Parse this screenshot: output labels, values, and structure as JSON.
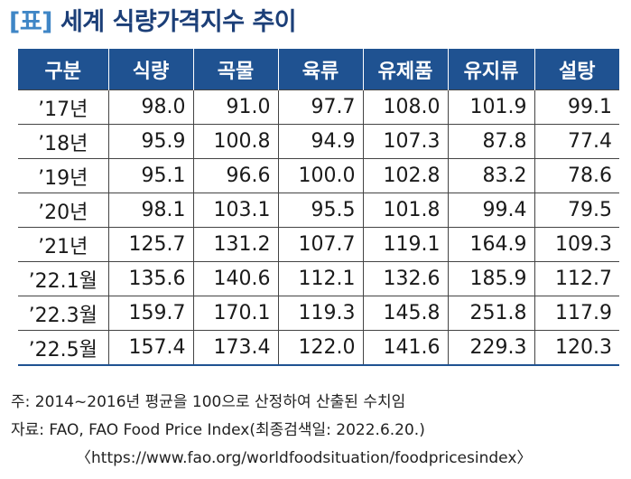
{
  "title": {
    "bracket": "[표]",
    "text": "세계 식량가격지수 추이"
  },
  "table": {
    "headers": [
      "구분",
      "식량",
      "곡물",
      "육류",
      "유제품",
      "유지류",
      "설탕"
    ],
    "rows": [
      [
        "’17년",
        "98.0",
        "91.0",
        "97.7",
        "108.0",
        "101.9",
        "99.1"
      ],
      [
        "’18년",
        "95.9",
        "100.8",
        "94.9",
        "107.3",
        "87.8",
        "77.4"
      ],
      [
        "’19년",
        "95.1",
        "96.6",
        "100.0",
        "102.8",
        "83.2",
        "78.6"
      ],
      [
        "’20년",
        "98.1",
        "103.1",
        "95.5",
        "101.8",
        "99.4",
        "79.5"
      ],
      [
        "’21년",
        "125.7",
        "131.2",
        "107.7",
        "119.1",
        "164.9",
        "109.3"
      ],
      [
        "’22.1월",
        "135.6",
        "140.6",
        "112.1",
        "132.6",
        "185.9",
        "112.7"
      ],
      [
        "’22.3월",
        "159.7",
        "170.1",
        "119.3",
        "145.8",
        "251.8",
        "117.9"
      ],
      [
        "’22.5월",
        "157.4",
        "173.4",
        "122.0",
        "141.6",
        "229.3",
        "120.3"
      ]
    ]
  },
  "notes": {
    "note": "주:  2014~2016년 평균을 100으로 산정하여 산출된 수치임",
    "source": "자료:  FAO, FAO Food Price Index(최종검색일: 2022.6.20.)",
    "url": "〈https://www.fao.org/worldfoodsituation/foodpricesindex〉"
  },
  "colors": {
    "header_bg": "#1f5291",
    "title_text": "#1c3f78",
    "title_bracket": "#3f86c6"
  }
}
